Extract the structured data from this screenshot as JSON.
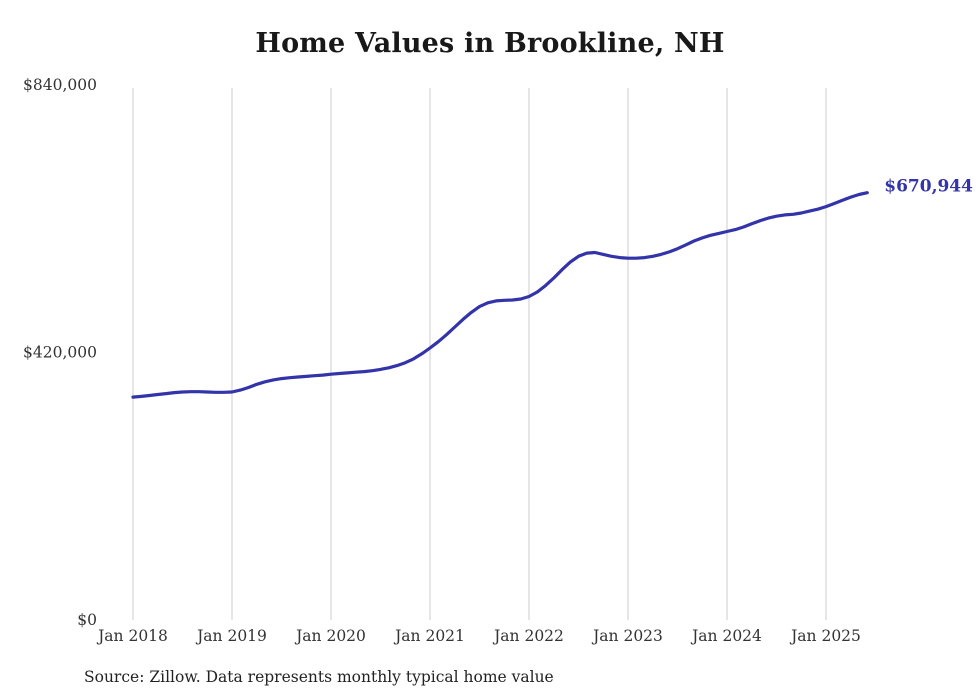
{
  "title": "Home Values in Brookline, NH",
  "source_note": "Source: Zillow. Data represents monthly typical home value",
  "end_label": "$670,944",
  "colors": {
    "line": "#3333aa",
    "grid": "#cccccc",
    "axis_text": "#333333",
    "title_text": "#191919"
  },
  "chart_data": {
    "type": "line",
    "title": "Home Values in Brookline, NH",
    "xlabel": "",
    "ylabel": "",
    "ylim": [
      0,
      840000
    ],
    "y_ticks": [
      0,
      420000,
      840000
    ],
    "y_tick_labels": [
      "$0",
      "$420,000",
      "$840,000"
    ],
    "x_tick_labels": [
      "Jan 2018",
      "Jan 2019",
      "Jan 2020",
      "Jan 2021",
      "Jan 2022",
      "Jan 2023",
      "Jan 2024",
      "Jan 2025"
    ],
    "grid": "vertical-only",
    "legend": "none",
    "start_month": "2018-01",
    "end_month": "2025-06",
    "final_value": 670944,
    "final_value_label": "$670,944",
    "series": [
      {
        "name": "Typical home value",
        "monthly_values": [
          350000,
          351000,
          352500,
          354000,
          355500,
          357000,
          358000,
          358500,
          358500,
          358000,
          357500,
          357500,
          358000,
          361000,
          365000,
          370000,
          374000,
          377000,
          379000,
          380500,
          381500,
          382500,
          383500,
          384500,
          386000,
          387000,
          388000,
          389000,
          390000,
          391500,
          393500,
          396000,
          399500,
          404000,
          410000,
          418000,
          427000,
          437000,
          448000,
          460000,
          472000,
          483000,
          492000,
          498000,
          501000,
          502000,
          502500,
          504000,
          508000,
          515000,
          525000,
          537000,
          550000,
          562000,
          571000,
          576000,
          577000,
          574000,
          571000,
          569000,
          568000,
          568000,
          569000,
          571000,
          574000,
          578000,
          583000,
          589000,
          595000,
          600000,
          604000,
          607000,
          610000,
          613000,
          617000,
          622000,
          627000,
          631000,
          634000,
          636000,
          637000,
          639000,
          642000,
          645000,
          649000,
          654000,
          659000,
          664000,
          668000,
          670944
        ]
      }
    ]
  }
}
